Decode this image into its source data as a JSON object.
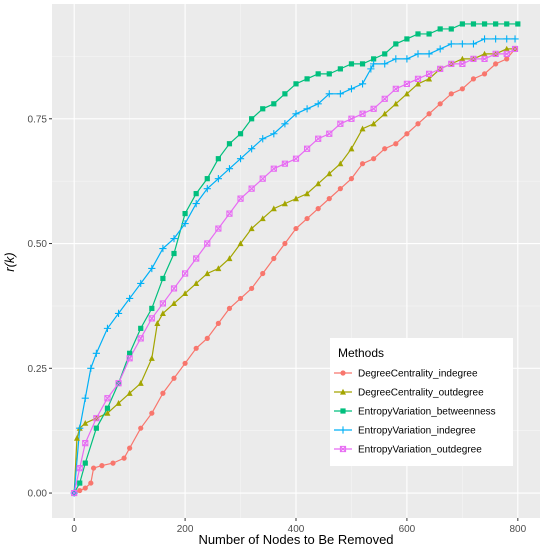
{
  "chart_data": {
    "type": "line",
    "title": "",
    "xlabel": "Number of Nodes to Be Removed",
    "ylabel": "r(k)",
    "xlim": [
      -40,
      840
    ],
    "ylim": [
      -0.05,
      0.98
    ],
    "x_ticks": [
      0,
      200,
      400,
      600,
      800
    ],
    "x_tick_labels": [
      "0",
      "200",
      "400",
      "600",
      "800"
    ],
    "y_ticks": [
      0,
      0.25,
      0.5,
      0.75
    ],
    "y_tick_labels": [
      "0.00",
      "0.25",
      "0.50",
      "0.75"
    ],
    "grid": true,
    "legend": {
      "title": "Methods",
      "placement": "bottom-right inside plot"
    },
    "series": [
      {
        "name": "DegreeCentrality_indegree",
        "color": "#F8766D",
        "marker": "circle",
        "points": [
          [
            0,
            0
          ],
          [
            10,
            0.005
          ],
          [
            20,
            0.01
          ],
          [
            30,
            0.02
          ],
          [
            35,
            0.05
          ],
          [
            50,
            0.055
          ],
          [
            70,
            0.06
          ],
          [
            90,
            0.07
          ],
          [
            100,
            0.09
          ],
          [
            120,
            0.13
          ],
          [
            140,
            0.16
          ],
          [
            160,
            0.2
          ],
          [
            180,
            0.23
          ],
          [
            200,
            0.26
          ],
          [
            220,
            0.29
          ],
          [
            240,
            0.31
          ],
          [
            260,
            0.34
          ],
          [
            280,
            0.37
          ],
          [
            300,
            0.39
          ],
          [
            320,
            0.41
          ],
          [
            340,
            0.44
          ],
          [
            360,
            0.47
          ],
          [
            380,
            0.5
          ],
          [
            400,
            0.53
          ],
          [
            420,
            0.55
          ],
          [
            440,
            0.57
          ],
          [
            460,
            0.59
          ],
          [
            480,
            0.61
          ],
          [
            500,
            0.63
          ],
          [
            520,
            0.66
          ],
          [
            540,
            0.67
          ],
          [
            560,
            0.69
          ],
          [
            580,
            0.7
          ],
          [
            600,
            0.72
          ],
          [
            620,
            0.74
          ],
          [
            640,
            0.76
          ],
          [
            660,
            0.78
          ],
          [
            680,
            0.8
          ],
          [
            700,
            0.81
          ],
          [
            720,
            0.83
          ],
          [
            740,
            0.84
          ],
          [
            760,
            0.86
          ],
          [
            780,
            0.87
          ],
          [
            795,
            0.89
          ]
        ]
      },
      {
        "name": "DegreeCentrality_outdegree",
        "color": "#A3A500",
        "marker": "triangle",
        "points": [
          [
            0,
            0
          ],
          [
            5,
            0.11
          ],
          [
            10,
            0.13
          ],
          [
            20,
            0.14
          ],
          [
            40,
            0.15
          ],
          [
            60,
            0.16
          ],
          [
            80,
            0.18
          ],
          [
            100,
            0.2
          ],
          [
            120,
            0.22
          ],
          [
            140,
            0.27
          ],
          [
            150,
            0.34
          ],
          [
            160,
            0.36
          ],
          [
            180,
            0.38
          ],
          [
            200,
            0.4
          ],
          [
            220,
            0.42
          ],
          [
            240,
            0.44
          ],
          [
            260,
            0.45
          ],
          [
            280,
            0.47
          ],
          [
            300,
            0.5
          ],
          [
            320,
            0.53
          ],
          [
            340,
            0.55
          ],
          [
            360,
            0.57
          ],
          [
            380,
            0.58
          ],
          [
            400,
            0.59
          ],
          [
            420,
            0.6
          ],
          [
            440,
            0.62
          ],
          [
            460,
            0.64
          ],
          [
            480,
            0.66
          ],
          [
            500,
            0.69
          ],
          [
            520,
            0.73
          ],
          [
            540,
            0.74
          ],
          [
            560,
            0.76
          ],
          [
            580,
            0.78
          ],
          [
            600,
            0.8
          ],
          [
            620,
            0.82
          ],
          [
            640,
            0.83
          ],
          [
            660,
            0.85
          ],
          [
            680,
            0.86
          ],
          [
            700,
            0.87
          ],
          [
            720,
            0.87
          ],
          [
            740,
            0.88
          ],
          [
            760,
            0.88
          ],
          [
            780,
            0.89
          ],
          [
            795,
            0.89
          ]
        ]
      },
      {
        "name": "EntropyVariation_betweenness",
        "color": "#00BF7D",
        "marker": "square",
        "points": [
          [
            0,
            0
          ],
          [
            10,
            0.02
          ],
          [
            20,
            0.06
          ],
          [
            40,
            0.13
          ],
          [
            60,
            0.17
          ],
          [
            80,
            0.22
          ],
          [
            100,
            0.28
          ],
          [
            120,
            0.33
          ],
          [
            140,
            0.37
          ],
          [
            160,
            0.43
          ],
          [
            180,
            0.48
          ],
          [
            200,
            0.56
          ],
          [
            220,
            0.6
          ],
          [
            240,
            0.63
          ],
          [
            260,
            0.67
          ],
          [
            280,
            0.7
          ],
          [
            300,
            0.72
          ],
          [
            320,
            0.75
          ],
          [
            340,
            0.77
          ],
          [
            360,
            0.78
          ],
          [
            380,
            0.8
          ],
          [
            400,
            0.82
          ],
          [
            420,
            0.83
          ],
          [
            440,
            0.84
          ],
          [
            460,
            0.84
          ],
          [
            480,
            0.85
          ],
          [
            500,
            0.86
          ],
          [
            520,
            0.86
          ],
          [
            540,
            0.87
          ],
          [
            560,
            0.88
          ],
          [
            580,
            0.9
          ],
          [
            600,
            0.91
          ],
          [
            620,
            0.92
          ],
          [
            640,
            0.92
          ],
          [
            660,
            0.93
          ],
          [
            680,
            0.93
          ],
          [
            700,
            0.94
          ],
          [
            720,
            0.94
          ],
          [
            740,
            0.94
          ],
          [
            760,
            0.94
          ],
          [
            780,
            0.94
          ],
          [
            800,
            0.94
          ]
        ]
      },
      {
        "name": "EntropyVariation_indegree",
        "color": "#00B0F6",
        "marker": "plus",
        "points": [
          [
            0,
            0
          ],
          [
            10,
            0.13
          ],
          [
            20,
            0.19
          ],
          [
            30,
            0.25
          ],
          [
            40,
            0.28
          ],
          [
            60,
            0.33
          ],
          [
            80,
            0.36
          ],
          [
            100,
            0.39
          ],
          [
            120,
            0.42
          ],
          [
            140,
            0.45
          ],
          [
            160,
            0.49
          ],
          [
            180,
            0.51
          ],
          [
            200,
            0.54
          ],
          [
            220,
            0.58
          ],
          [
            240,
            0.61
          ],
          [
            260,
            0.63
          ],
          [
            280,
            0.65
          ],
          [
            300,
            0.67
          ],
          [
            320,
            0.69
          ],
          [
            340,
            0.71
          ],
          [
            360,
            0.72
          ],
          [
            380,
            0.74
          ],
          [
            400,
            0.76
          ],
          [
            420,
            0.77
          ],
          [
            440,
            0.78
          ],
          [
            460,
            0.8
          ],
          [
            480,
            0.8
          ],
          [
            500,
            0.81
          ],
          [
            520,
            0.82
          ],
          [
            535,
            0.85
          ],
          [
            540,
            0.86
          ],
          [
            560,
            0.86
          ],
          [
            580,
            0.87
          ],
          [
            600,
            0.87
          ],
          [
            620,
            0.88
          ],
          [
            640,
            0.88
          ],
          [
            660,
            0.89
          ],
          [
            680,
            0.9
          ],
          [
            700,
            0.9
          ],
          [
            720,
            0.9
          ],
          [
            740,
            0.91
          ],
          [
            760,
            0.91
          ],
          [
            780,
            0.91
          ],
          [
            795,
            0.91
          ]
        ]
      },
      {
        "name": "EntropyVariation_outdegree",
        "color": "#E76BF3",
        "marker": "square-cross",
        "points": [
          [
            0,
            0
          ],
          [
            10,
            0.05
          ],
          [
            20,
            0.1
          ],
          [
            40,
            0.15
          ],
          [
            60,
            0.19
          ],
          [
            80,
            0.22
          ],
          [
            100,
            0.27
          ],
          [
            120,
            0.31
          ],
          [
            140,
            0.35
          ],
          [
            160,
            0.38
          ],
          [
            180,
            0.41
          ],
          [
            200,
            0.44
          ],
          [
            220,
            0.47
          ],
          [
            240,
            0.5
          ],
          [
            260,
            0.53
          ],
          [
            280,
            0.56
          ],
          [
            300,
            0.59
          ],
          [
            320,
            0.61
          ],
          [
            340,
            0.63
          ],
          [
            360,
            0.65
          ],
          [
            380,
            0.66
          ],
          [
            400,
            0.67
          ],
          [
            420,
            0.69
          ],
          [
            440,
            0.71
          ],
          [
            460,
            0.72
          ],
          [
            480,
            0.74
          ],
          [
            500,
            0.75
          ],
          [
            520,
            0.76
          ],
          [
            540,
            0.77
          ],
          [
            560,
            0.79
          ],
          [
            580,
            0.81
          ],
          [
            600,
            0.82
          ],
          [
            620,
            0.83
          ],
          [
            640,
            0.84
          ],
          [
            660,
            0.85
          ],
          [
            680,
            0.86
          ],
          [
            700,
            0.86
          ],
          [
            720,
            0.87
          ],
          [
            740,
            0.87
          ],
          [
            760,
            0.88
          ],
          [
            780,
            0.88
          ],
          [
            795,
            0.89
          ]
        ]
      }
    ]
  }
}
